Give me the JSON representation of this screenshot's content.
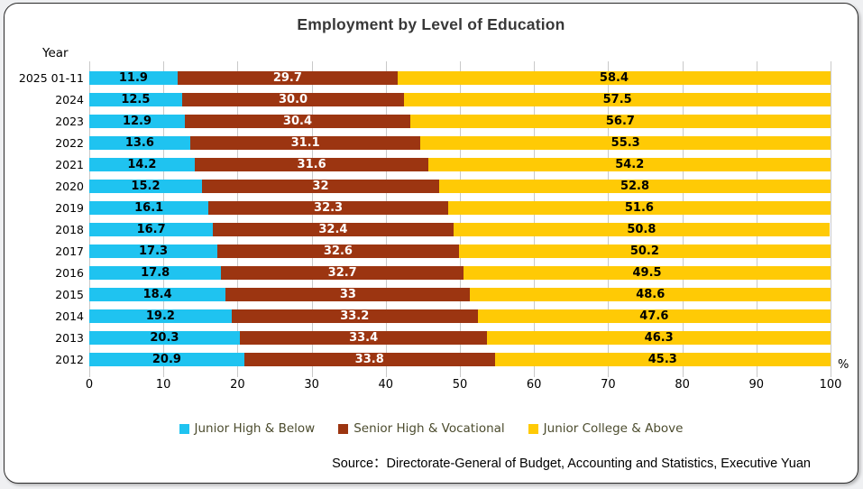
{
  "title": "Employment by Level of Education",
  "axis": {
    "y_title": "Year",
    "unit_label": "%",
    "x_ticks": [
      "0",
      "10",
      "20",
      "30",
      "40",
      "50",
      "60",
      "70",
      "80",
      "90",
      "100"
    ],
    "gridline_color": "#c9c9c9"
  },
  "chart_data": {
    "type": "bar",
    "orientation": "horizontal-stacked",
    "title": "Employment by Level of Education",
    "xlabel": "%",
    "ylabel": "Year",
    "xlim": [
      0,
      100
    ],
    "grid": true,
    "legend_position": "bottom",
    "categories": [
      "2025 01-11",
      "2024",
      "2023",
      "2022",
      "2021",
      "2020",
      "2019",
      "2018",
      "2017",
      "2016",
      "2015",
      "2014",
      "2013",
      "2012"
    ],
    "series": [
      {
        "name": "Junior High & Below",
        "color": "#1fc3f0",
        "label_color": "#000000",
        "values": [
          "11.9",
          "12.5",
          "12.9",
          "13.6",
          "14.2",
          "15.2",
          "16.1",
          "16.7",
          "17.3",
          "17.8",
          "18.4",
          "19.2",
          "20.3",
          "20.9"
        ]
      },
      {
        "name": "Senior High & Vocational",
        "color": "#9c3511",
        "label_color": "#ffffff",
        "values": [
          "29.7",
          "30.0",
          "30.4",
          "31.1",
          "31.6",
          "32",
          "32.3",
          "32.4",
          "32.6",
          "32.7",
          "33",
          "33.2",
          "33.4",
          "33.8"
        ]
      },
      {
        "name": "Junior College & Above",
        "color": "#ffca05",
        "label_color": "#000000",
        "values": [
          "58.4",
          "57.5",
          "56.7",
          "55.3",
          "54.2",
          "52.8",
          "51.6",
          "50.8",
          "50.2",
          "49.5",
          "48.6",
          "47.6",
          "46.3",
          "45.3"
        ]
      }
    ]
  },
  "legend": {
    "text_color": "#4c4c2e"
  },
  "source": "Source：Directorate-General of Budget, Accounting and Statistics, Executive Yuan"
}
